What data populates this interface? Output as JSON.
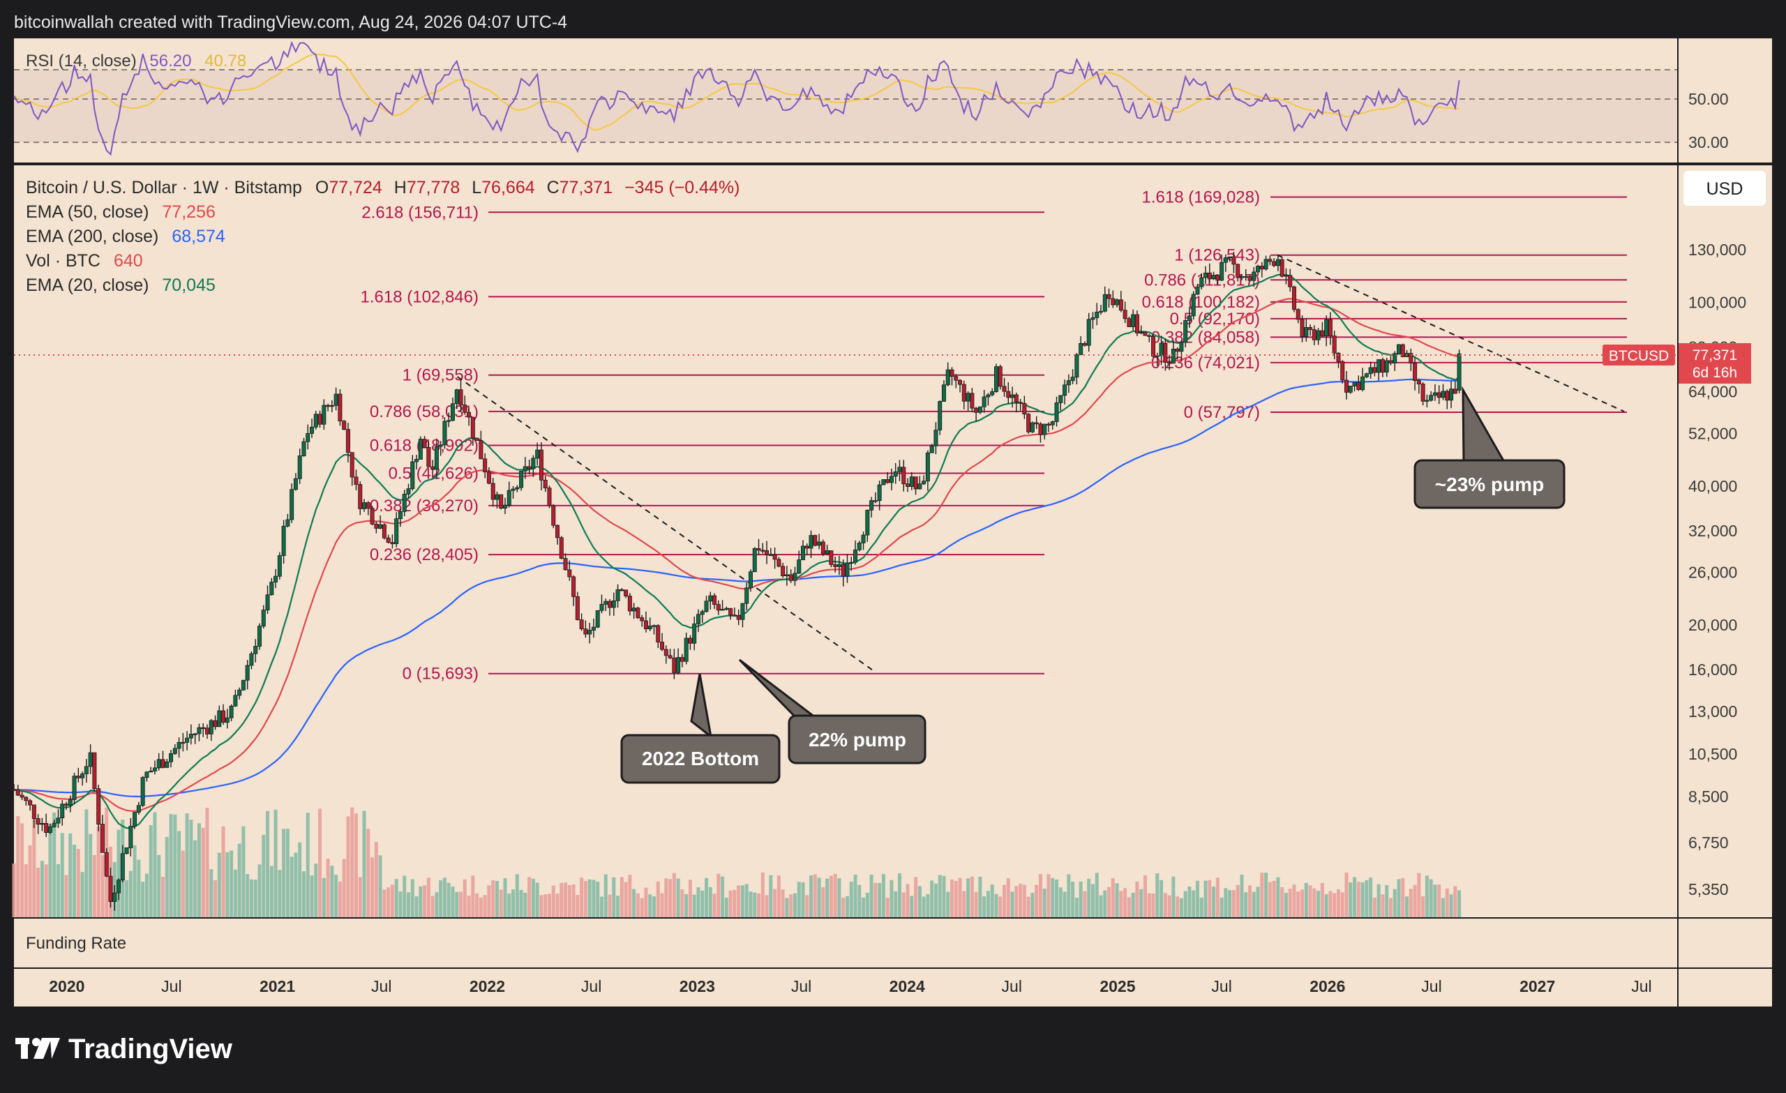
{
  "header": {
    "credit": "bitcoinwallah created with TradingView.com, Aug 24, 2026 04:07 UTC-4"
  },
  "rsi": {
    "label": "RSI (14, close)",
    "value": "56.20",
    "ma_value": "40.78",
    "levels": [
      "50.00",
      "30.00"
    ]
  },
  "legend": {
    "symbol": "Bitcoin / U.S. Dollar · 1W · Bitstamp",
    "o_label": "O",
    "open": "77,724",
    "h_label": "H",
    "high": "77,778",
    "l_label": "L",
    "low": "76,664",
    "c_label": "C",
    "close": "77,371",
    "change": "−345 (−0.44%)",
    "ema50_label": "EMA (50, close)",
    "ema50": "77,256",
    "ema200_label": "EMA (200, close)",
    "ema200": "68,574",
    "vol_label": "Vol · BTC",
    "vol": "640",
    "ema20_label": "EMA (20, close)",
    "ema20": "70,045"
  },
  "currency_button": "USD",
  "price_tag": {
    "symbol": "BTCUSD",
    "price": "77,371",
    "countdown": "6d 16h"
  },
  "funding_label": "Funding Rate",
  "branding": "TradingView",
  "annotations": {
    "bottom_2022": "2022 Bottom",
    "pump_22": "22% pump",
    "pump_23": "~23% pump"
  },
  "colors": {
    "background": "#f3e3d0",
    "frame": "#1c1c1e",
    "fib": "#b3164f",
    "ema50": "#e0484e",
    "ema200": "#2962ff",
    "ema20": "#0d7a52",
    "rsi": "#7e57c2",
    "rsi_ma": "#f5c842",
    "up": "#0f6b45",
    "down": "#b51e2c",
    "callout": "#6e6762"
  },
  "chart_data": {
    "type": "candlestick",
    "title": "Bitcoin / U.S. Dollar · 1W · Bitstamp",
    "y_scale": "log",
    "y_ticks": [
      "130,000",
      "100,000",
      "80,000",
      "64,000",
      "52,000",
      "40,000",
      "32,000",
      "26,000",
      "20,000",
      "16,000",
      "13,000",
      "10,500",
      "8,500",
      "6,750",
      "5,350"
    ],
    "x_ticks": [
      "2020",
      "Jul",
      "2021",
      "Jul",
      "2022",
      "Jul",
      "2023",
      "Jul",
      "2024",
      "Jul",
      "2025",
      "Jul",
      "2026",
      "Jul",
      "2027",
      "Jul"
    ],
    "x_range": [
      "2019-10",
      "2027-09"
    ],
    "series_ema": [
      {
        "name": "EMA (50, close)",
        "last": 77256
      },
      {
        "name": "EMA (200, close)",
        "last": 68574
      },
      {
        "name": "EMA (20, close)",
        "last": 70045
      }
    ],
    "price_path": [
      [
        "2019-10-01",
        8800
      ],
      [
        "2019-12-01",
        7200
      ],
      [
        "2020-02-10",
        10400
      ],
      [
        "2020-03-16",
        5000
      ],
      [
        "2020-05-15",
        9400
      ],
      [
        "2020-08-01",
        11500
      ],
      [
        "2020-10-15",
        13000
      ],
      [
        "2020-12-20",
        23500
      ],
      [
        "2021-02-20",
        52000
      ],
      [
        "2021-04-14",
        63000
      ],
      [
        "2021-05-20",
        38000
      ],
      [
        "2021-07-20",
        30500
      ],
      [
        "2021-09-07",
        51000
      ],
      [
        "2021-09-25",
        42500
      ],
      [
        "2021-11-10",
        66000
      ],
      [
        "2022-01-24",
        35000
      ],
      [
        "2022-03-28",
        47000
      ],
      [
        "2022-05-10",
        29000
      ],
      [
        "2022-06-18",
        18500
      ],
      [
        "2022-08-15",
        24000
      ],
      [
        "2022-10-20",
        19000
      ],
      [
        "2022-11-21",
        16000
      ],
      [
        "2023-01-20",
        22500
      ],
      [
        "2023-03-10",
        20000
      ],
      [
        "2023-04-14",
        30000
      ],
      [
        "2023-06-15",
        25000
      ],
      [
        "2023-07-14",
        31000
      ],
      [
        "2023-09-10",
        25800
      ],
      [
        "2023-10-25",
        34500
      ],
      [
        "2023-12-08",
        44000
      ],
      [
        "2024-01-23",
        39000
      ],
      [
        "2024-03-14",
        70500
      ],
      [
        "2024-05-01",
        57500
      ],
      [
        "2024-06-05",
        70000
      ],
      [
        "2024-08-05",
        53000
      ],
      [
        "2024-09-07",
        54000
      ],
      [
        "2024-11-12",
        88000
      ],
      [
        "2024-12-17",
        106000
      ],
      [
        "2025-02-28",
        80000
      ],
      [
        "2025-04-08",
        76000
      ],
      [
        "2025-05-22",
        110000
      ],
      [
        "2025-07-14",
        121000
      ],
      [
        "2025-08-20",
        113000
      ],
      [
        "2025-10-06",
        126543
      ],
      [
        "2025-11-20",
        84000
      ],
      [
        "2025-12-30",
        88000
      ],
      [
        "2026-02-05",
        65000
      ],
      [
        "2026-04-15",
        74000
      ],
      [
        "2026-05-10",
        79000
      ],
      [
        "2026-06-20",
        60000
      ],
      [
        "2026-07-25",
        63000
      ],
      [
        "2026-08-10",
        64500
      ],
      [
        "2026-08-24",
        77371
      ]
    ],
    "fib_levels_2021": [
      {
        "ratio": "2.618",
        "label": "2.618 (156,711)",
        "value": 156711
      },
      {
        "ratio": "1.618",
        "label": "1.618 (102,846)",
        "value": 102846
      },
      {
        "ratio": "1",
        "label": "1 (69,558)",
        "value": 69558
      },
      {
        "ratio": "0.786",
        "label": "0.786 (58,031)",
        "value": 58031
      },
      {
        "ratio": "0.618",
        "label": "0.618 (48,992)",
        "value": 48992
      },
      {
        "ratio": "0.5",
        "label": "0.5 (42,626)",
        "value": 42626
      },
      {
        "ratio": "0.382",
        "label": "0.382 (36,270)",
        "value": 36270
      },
      {
        "ratio": "0.236",
        "label": "0.236 (28,405)",
        "value": 28405
      },
      {
        "ratio": "0",
        "label": "0 (15,693)",
        "value": 15693
      }
    ],
    "fib_levels_2025": [
      {
        "ratio": "1.618",
        "label": "1.618 (169,028)",
        "value": 169028
      },
      {
        "ratio": "1",
        "label": "1 (126,543)",
        "value": 126543
      },
      {
        "ratio": "0.786",
        "label": "0.786 (111,817)",
        "value": 111817
      },
      {
        "ratio": "0.618",
        "label": "0.618 (100,182)",
        "value": 100182
      },
      {
        "ratio": "0.5",
        "label": "0.5 (92,170)",
        "value": 92170
      },
      {
        "ratio": "0.382",
        "label": "0.382 (84,058)",
        "value": 84058
      },
      {
        "ratio": "0.236",
        "label": "0.236 (74,021)",
        "value": 74021
      },
      {
        "ratio": "0",
        "label": "0 (57,797)",
        "value": 57797
      }
    ],
    "trendlines": [
      {
        "from": [
          "2021-11-10",
          69000
        ],
        "to": [
          "2023-11-01",
          16000
        ]
      },
      {
        "from": [
          "2025-10-06",
          126543
        ],
        "to": [
          "2027-06-01",
          58000
        ]
      }
    ]
  }
}
